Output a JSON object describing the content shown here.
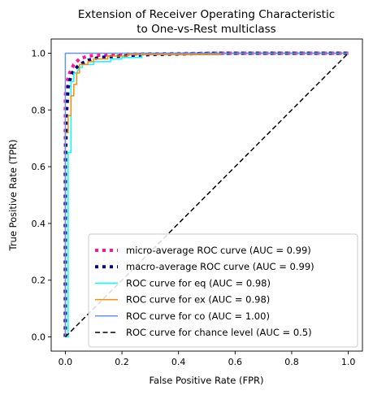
{
  "chart_data": {
    "type": "line",
    "title": [
      "Extension of Receiver Operating Characteristic",
      "to One-vs-Rest multiclass"
    ],
    "xlabel": "False Positive Rate (FPR)",
    "ylabel": "True Positive Rate (TPR)",
    "xlim": [
      -0.05,
      1.05
    ],
    "ylim": [
      -0.05,
      1.05
    ],
    "xticks": [
      0.0,
      0.2,
      0.4,
      0.6,
      0.8,
      1.0
    ],
    "yticks": [
      0.0,
      0.2,
      0.4,
      0.6,
      0.8,
      1.0
    ],
    "xtick_labels": [
      "0.0",
      "0.2",
      "0.4",
      "0.6",
      "0.8",
      "1.0"
    ],
    "ytick_labels": [
      "0.0",
      "0.2",
      "0.4",
      "0.6",
      "0.8",
      "1.0"
    ],
    "grid": false,
    "legend_position": "lower-right",
    "series": [
      {
        "name": "micro-average ROC curve (AUC = 0.99)",
        "color": "#ff1493",
        "style": "dotted",
        "width": 4,
        "x": [
          0,
          0,
          0.003,
          0.006,
          0.009,
          0.012,
          0.015,
          0.02,
          0.03,
          0.05,
          0.08,
          0.12,
          0.2,
          0.3,
          0.55,
          1.0
        ],
        "y": [
          0,
          0.85,
          0.88,
          0.9,
          0.91,
          0.92,
          0.93,
          0.94,
          0.96,
          0.98,
          0.99,
          0.993,
          0.996,
          0.998,
          1.0,
          1.0
        ]
      },
      {
        "name": "macro-average ROC curve (AUC = 0.99)",
        "color": "#000080",
        "style": "dotted",
        "width": 4,
        "x": [
          0,
          0,
          0.005,
          0.01,
          0.02,
          0.03,
          0.05,
          0.08,
          0.12,
          0.2,
          0.3,
          0.55,
          1.0
        ],
        "y": [
          0,
          0.6,
          0.8,
          0.88,
          0.92,
          0.94,
          0.96,
          0.975,
          0.985,
          0.99,
          0.995,
          1.0,
          1.0
        ]
      },
      {
        "name": "ROC curve for eq (AUC = 0.98)",
        "color": "#00ffff",
        "style": "solid",
        "width": 1.5,
        "x": [
          0,
          0.01,
          0.01,
          0.02,
          0.02,
          0.03,
          0.03,
          0.04,
          0.05,
          0.06,
          0.06,
          0.1,
          0.1,
          0.16,
          0.16,
          0.2,
          0.2,
          0.27,
          0.27,
          1.0
        ],
        "y": [
          0,
          0,
          0.65,
          0.65,
          0.9,
          0.9,
          0.93,
          0.93,
          0.95,
          0.95,
          0.96,
          0.96,
          0.97,
          0.97,
          0.98,
          0.98,
          0.985,
          0.985,
          1.0,
          1.0
        ]
      },
      {
        "name": "ROC curve for ex (AUC = 0.98)",
        "color": "#ff8c00",
        "style": "solid",
        "width": 1.5,
        "x": [
          0,
          0.0,
          0.01,
          0.01,
          0.02,
          0.02,
          0.03,
          0.03,
          0.04,
          0.04,
          0.05,
          0.05,
          0.08,
          0.08,
          0.1,
          0.1,
          0.15,
          0.15,
          0.22,
          0.22,
          0.55,
          0.55,
          1.0
        ],
        "y": [
          0,
          0.72,
          0.72,
          0.78,
          0.78,
          0.85,
          0.85,
          0.89,
          0.89,
          0.93,
          0.93,
          0.96,
          0.96,
          0.97,
          0.97,
          0.98,
          0.98,
          0.99,
          0.99,
          0.995,
          0.995,
          1.0,
          1.0
        ]
      },
      {
        "name": "ROC curve for co (AUC = 1.00)",
        "color": "#6495ed",
        "style": "solid",
        "width": 1.5,
        "x": [
          0,
          0,
          0.01,
          0.01,
          1.0
        ],
        "y": [
          0,
          1.0,
          1.0,
          1.0,
          1.0
        ]
      },
      {
        "name": "ROC curve for chance level (AUC = 0.5)",
        "color": "#000000",
        "style": "dashed",
        "width": 1.5,
        "x": [
          0,
          1
        ],
        "y": [
          0,
          1
        ]
      }
    ]
  }
}
